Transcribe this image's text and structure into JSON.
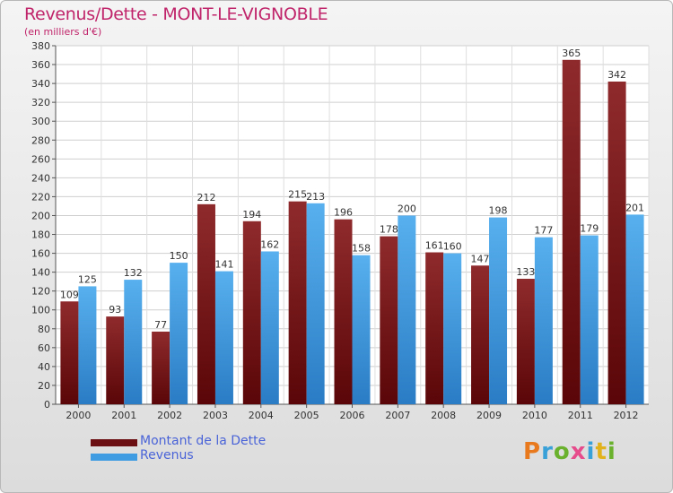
{
  "header": {
    "title": "Revenus/Dette - MONT-LE-VIGNOBLE",
    "subtitle": "(en milliers d'€)"
  },
  "legend": [
    {
      "label": "Montant de la Dette",
      "color": "#6b0f12"
    },
    {
      "label": "Revenus",
      "color": "#3f9be2"
    }
  ],
  "logo": {
    "text": "Proxiti",
    "colors": [
      "#e87a1d",
      "#3aa0d8",
      "#6ab22e",
      "#e64c8b",
      "#3aa0d8",
      "#e2b21d",
      "#6ab22e"
    ]
  },
  "chart_data": {
    "type": "bar",
    "title": "Revenus/Dette - MONT-LE-VIGNOBLE",
    "ylabel": "(en milliers d'€)",
    "categories": [
      "2000",
      "2001",
      "2002",
      "2003",
      "2004",
      "2005",
      "2006",
      "2007",
      "2008",
      "2009",
      "2010",
      "2011",
      "2012"
    ],
    "series": [
      {
        "name": "Montant de la Dette",
        "color": "#7a1c1f",
        "values": [
          109,
          93,
          77,
          212,
          194,
          215,
          196,
          178,
          161,
          147,
          133,
          365,
          342
        ]
      },
      {
        "name": "Revenus",
        "color": "#3f9be2",
        "values": [
          125,
          132,
          150,
          141,
          162,
          213,
          158,
          200,
          160,
          198,
          177,
          179,
          201
        ]
      }
    ],
    "ylim": [
      0,
      380
    ],
    "yticks": [
      0,
      20,
      40,
      60,
      80,
      100,
      120,
      140,
      160,
      180,
      200,
      220,
      240,
      260,
      280,
      300,
      320,
      340,
      360,
      380
    ],
    "grid": true,
    "legend_position": "bottom-left"
  }
}
